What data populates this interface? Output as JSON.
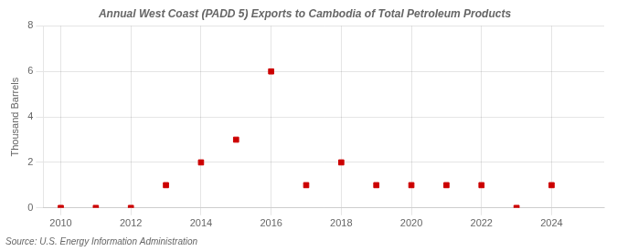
{
  "chart_data": {
    "type": "scatter",
    "title": "Annual West Coast (PADD 5) Exports to Cambodia of Total Petroleum Products",
    "ylabel": "Thousand Barrels",
    "annotations": [
      "Source: U.S. Energy Information Administration"
    ],
    "x": [
      2010,
      2011,
      2012,
      2013,
      2014,
      2015,
      2016,
      2017,
      2018,
      2019,
      2020,
      2021,
      2022,
      2023,
      2024
    ],
    "values": [
      0,
      0,
      0,
      1,
      2,
      3,
      6,
      1,
      2,
      1,
      1,
      1,
      1,
      0,
      1
    ],
    "xlim": [
      2009.5,
      2025.5
    ],
    "xticks": [
      2010,
      2012,
      2014,
      2016,
      2018,
      2020,
      2022,
      2024
    ],
    "ylim": [
      0,
      8
    ],
    "yticks": [
      0,
      2,
      4,
      6,
      8
    ],
    "color": "#cc0000",
    "marker": "square",
    "grid": true
  }
}
